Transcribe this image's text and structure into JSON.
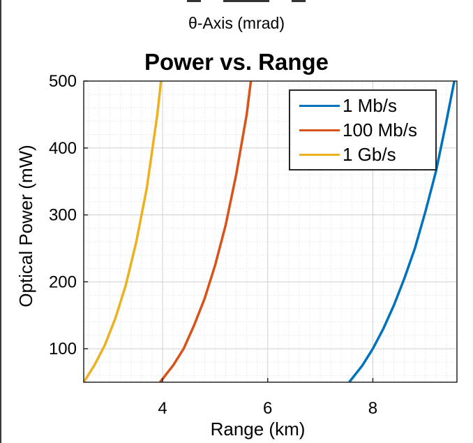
{
  "upper_axis": {
    "xlabel": "θ-Axis (mrad)"
  },
  "chart_data": {
    "type": "line",
    "title": "Power vs. Range",
    "xlabel": "Range (km)",
    "ylabel": "Optical Power (mW)",
    "xlim": [
      2.5,
      9.6
    ],
    "ylim": [
      50,
      500
    ],
    "xticks": [
      4,
      6,
      8
    ],
    "yticks": [
      100,
      200,
      300,
      400,
      500
    ],
    "grid": "on (major and minor, dotted)",
    "legend_position": "top-right",
    "series": [
      {
        "name": "1 Mb/s",
        "color": "#0072BD",
        "x": [
          7.55,
          7.8,
          8.0,
          8.2,
          8.4,
          8.6,
          8.8,
          9.0,
          9.2,
          9.4,
          9.55
        ],
        "y": [
          50,
          75,
          100,
          130,
          165,
          205,
          250,
          305,
          365,
          440,
          500
        ]
      },
      {
        "name": "100 Mb/s",
        "color": "#D95319",
        "x": [
          3.95,
          4.2,
          4.4,
          4.6,
          4.8,
          5.0,
          5.2,
          5.4,
          5.6,
          5.68
        ],
        "y": [
          50,
          75,
          100,
          135,
          175,
          225,
          285,
          360,
          450,
          500
        ]
      },
      {
        "name": "1 Gb/s",
        "color": "#EDB120",
        "x": [
          2.5,
          2.7,
          2.9,
          3.1,
          3.3,
          3.5,
          3.7,
          3.9,
          3.97
        ],
        "y": [
          50,
          75,
          105,
          145,
          195,
          260,
          340,
          450,
          500
        ]
      }
    ]
  }
}
